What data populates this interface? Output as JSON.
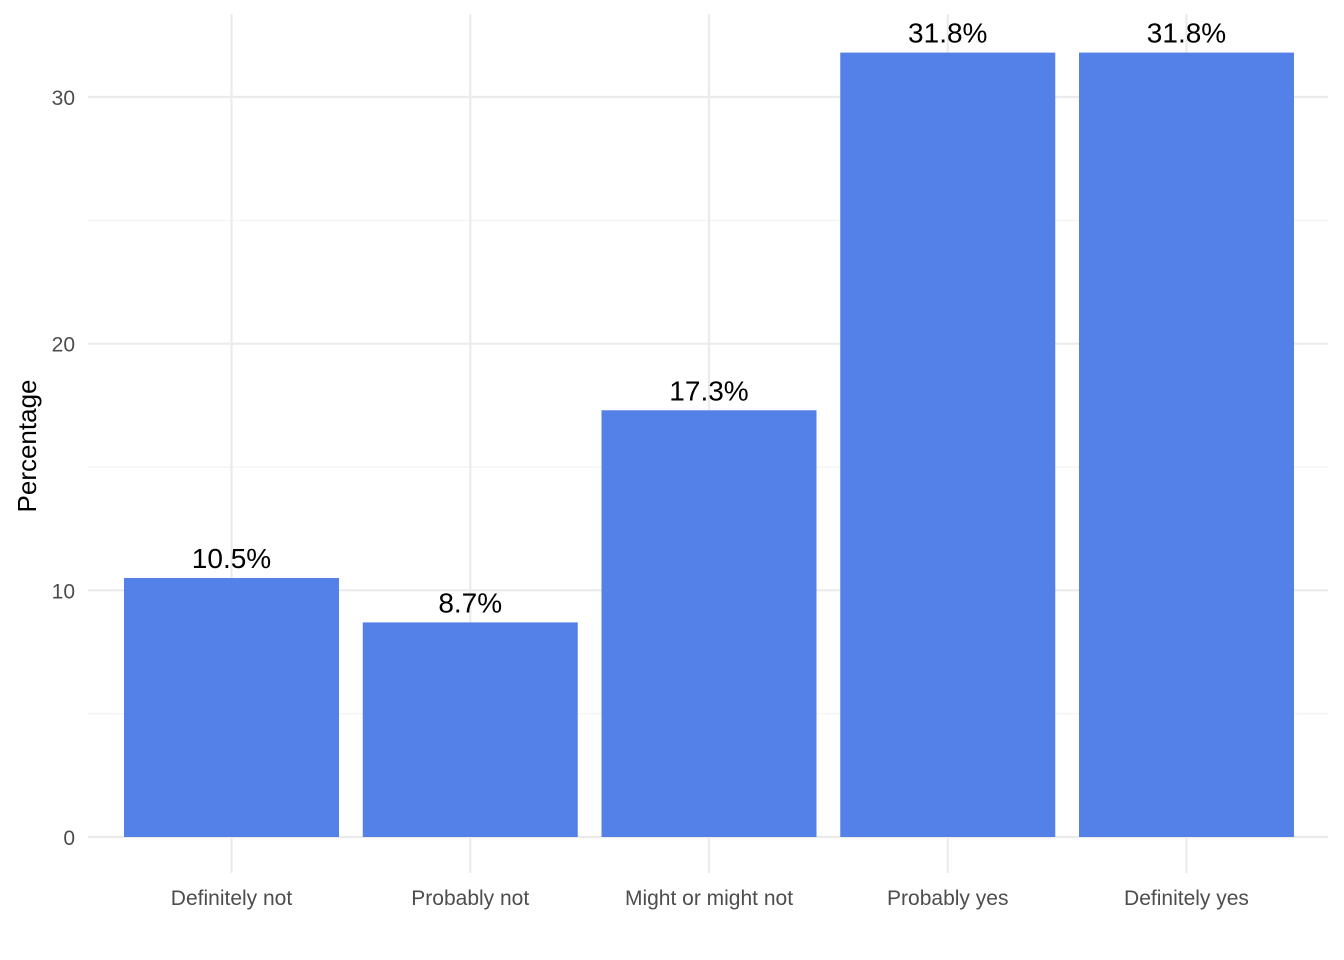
{
  "chart_data": {
    "type": "bar",
    "title": "",
    "xlabel": "",
    "ylabel": "Percentage",
    "categories": [
      "Definitely not",
      "Probably not",
      "Might or might not",
      "Probably yes",
      "Definitely yes"
    ],
    "values": [
      10.5,
      8.7,
      17.3,
      31.8,
      31.8
    ],
    "data_labels": [
      "10.5%",
      "8.7%",
      "17.3%",
      "31.8%",
      "31.8%"
    ],
    "y_ticks": [
      0,
      10,
      20,
      30
    ],
    "ylim": [
      0,
      33.4
    ],
    "grid": true,
    "legend": "none",
    "bar_color": "#5381e8"
  }
}
